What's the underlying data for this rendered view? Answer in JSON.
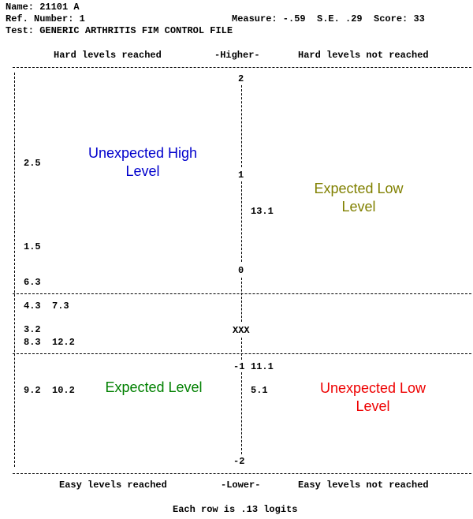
{
  "header": {
    "name": "Name: 21101 A",
    "ref": "Ref. Number: 1",
    "measure": "Measure: -.59  S.E. .29  Score: 33",
    "test": "Test: GENERIC ARTHRITIS FIM CONTROL FILE"
  },
  "top_labels": {
    "left": "Hard levels reached",
    "center": "-Higher-",
    "right": "Hard levels not reached"
  },
  "bottom_labels": {
    "left": "Easy levels reached",
    "center": "-Lower-",
    "right": "Easy levels not reached"
  },
  "footer": "Each row is .13 logits",
  "axis_ticks": [
    "2",
    "1",
    "0",
    "XXX",
    "-1",
    "-2"
  ],
  "quadrants": {
    "top_left": "Unexpected High Level",
    "top_right": "Expected Low Level",
    "bottom_left": "Expected Level",
    "bottom_right": "Unexpected Low Level"
  },
  "left_items": [
    "2.5",
    "1.5",
    "6.3",
    "4.3  7.3",
    "3.2",
    "8.3  12.2",
    "9.2  10.2"
  ],
  "right_items": [
    "13.1",
    "11.1",
    "5.1"
  ],
  "colors": {
    "top_left": "#0000cc",
    "top_right": "#808000",
    "bottom_left": "#008000",
    "bottom_right": "#ee0000"
  }
}
